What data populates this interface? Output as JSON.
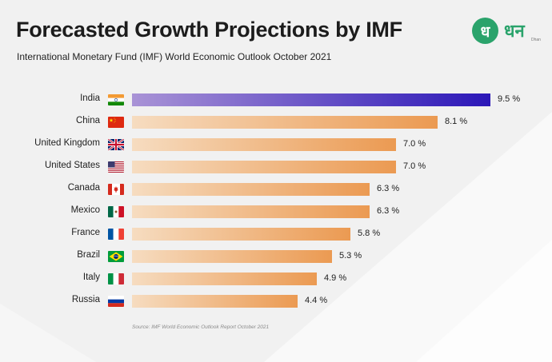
{
  "header": {
    "title": "Forecasted Growth Projections by IMF",
    "subtitle": "International Monetary Fund (IMF) World Economic Outlook October 2021"
  },
  "logo": {
    "glyph": "ध",
    "text": "धन",
    "subtext": "Dhan"
  },
  "source": "Source: IMF World Economic Outlook Report October 2021",
  "colors": {
    "highlight_start": "#a993d6",
    "highlight_end": "#2b17b8",
    "bar_start": "#f6dcc0",
    "bar_end": "#eb9a52",
    "logo_green": "#2aa36b"
  },
  "chart_data": {
    "type": "bar",
    "orientation": "horizontal",
    "title": "Forecasted Growth Projections by IMF",
    "subtitle": "International Monetary Fund (IMF) World Economic Outlook October 2021",
    "xlabel": "",
    "ylabel": "",
    "xlim": [
      0,
      10
    ],
    "grid": false,
    "categories": [
      "India",
      "China",
      "United Kingdom",
      "United States",
      "Canada",
      "Mexico",
      "France",
      "Brazil",
      "Italy",
      "Russia"
    ],
    "values": [
      9.5,
      8.1,
      7.0,
      7.0,
      6.3,
      6.3,
      5.8,
      5.3,
      4.9,
      4.4
    ],
    "value_labels": [
      "9.5 %",
      "8.1 %",
      "7.0 %",
      "7.0 %",
      "6.3 %",
      "6.3 %",
      "5.8 %",
      "5.3 %",
      "4.9 %",
      "4.4 %"
    ],
    "highlighted": [
      "India"
    ],
    "flags": [
      "india-flag",
      "china-flag",
      "uk-flag",
      "us-flag",
      "canada-flag",
      "mexico-flag",
      "france-flag",
      "brazil-flag",
      "italy-flag",
      "russia-flag"
    ]
  }
}
